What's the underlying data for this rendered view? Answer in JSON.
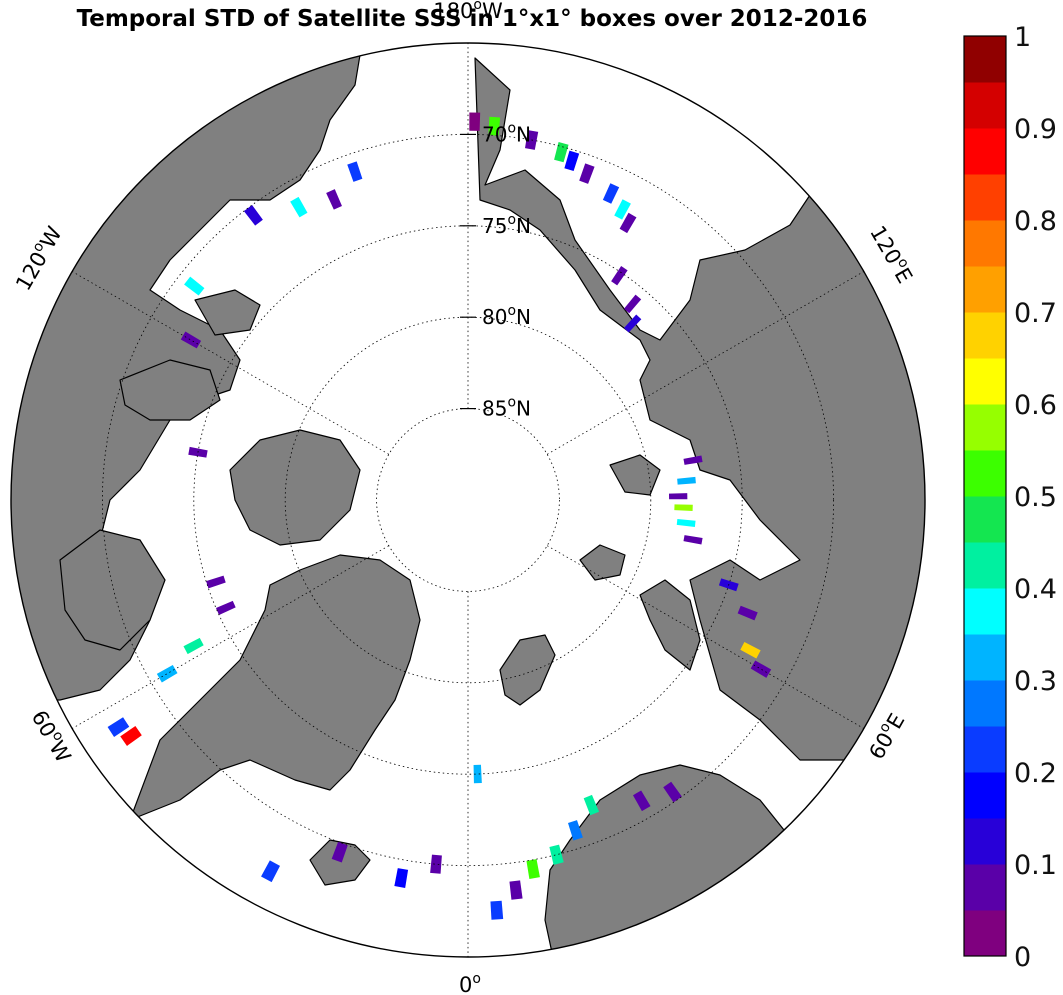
{
  "title": "Temporal STD of Satellite SSS in 1°x1° boxes over 2012-2016",
  "parallels": [
    {
      "lat": 70,
      "label": "70"
    },
    {
      "lat": 75,
      "label": "75"
    },
    {
      "lat": 80,
      "label": "80"
    },
    {
      "lat": 85,
      "label": "85"
    }
  ],
  "lat_suffix": "N",
  "meridian_labels": [
    {
      "text": "180",
      "hemi": "W"
    },
    {
      "text": "120",
      "hemi": "E"
    },
    {
      "text": "60",
      "hemi": "E"
    },
    {
      "text": "0",
      "hemi": ""
    },
    {
      "text": "60",
      "hemi": "W"
    },
    {
      "text": "120",
      "hemi": "W"
    }
  ],
  "colorbar": {
    "min": 0,
    "max": 1,
    "tick_labels": [
      "0",
      "0.1",
      "0.2",
      "0.3",
      "0.4",
      "0.5",
      "0.6",
      "0.7",
      "0.8",
      "0.9",
      "1"
    ],
    "colors": [
      "#7f007f",
      "#5a00a8",
      "#2800d8",
      "#0000ff",
      "#0a3cff",
      "#0078ff",
      "#00b4ff",
      "#00ffff",
      "#00f0a0",
      "#14e650",
      "#3cff00",
      "#96ff00",
      "#ffff00",
      "#ffd200",
      "#ffa000",
      "#ff7800",
      "#ff4000",
      "#ff0000",
      "#d40000",
      "#900000"
    ]
  },
  "colors": {
    "land": "#808080",
    "ocean": "#ffffff",
    "coast": "#000000",
    "grid": "#000000"
  },
  "chart_data": {
    "type": "heatmap",
    "title": "Temporal STD of Satellite SSS in 1°x1° boxes over 2012-2016",
    "projection": "north polar stereographic",
    "lat_range": [
      65,
      90
    ],
    "value_range": [
      0,
      1
    ],
    "cells": [
      {
        "lon": 179,
        "lat": 69.3,
        "v": 0.03
      },
      {
        "lon": 176,
        "lat": 69.5,
        "v": 0.52
      },
      {
        "lon": 170,
        "lat": 70,
        "v": 0.05
      },
      {
        "lon": 165,
        "lat": 70.3,
        "v": 0.45
      },
      {
        "lon": 163,
        "lat": 70.6,
        "v": 0.15
      },
      {
        "lon": 160,
        "lat": 71,
        "v": 0.08
      },
      {
        "lon": 155,
        "lat": 71.5,
        "v": 0.2
      },
      {
        "lon": 152,
        "lat": 72,
        "v": 0.38
      },
      {
        "lon": 150,
        "lat": 72.5,
        "v": 0.05
      },
      {
        "lon": 146,
        "lat": 75.2,
        "v": 0.05
      },
      {
        "lon": 140,
        "lat": 76,
        "v": 0.05
      },
      {
        "lon": 137,
        "lat": 76.8,
        "v": 0.1
      },
      {
        "lon": 100,
        "lat": 77.5,
        "v": 0.08
      },
      {
        "lon": 95,
        "lat": 78,
        "v": 0.3
      },
      {
        "lon": 91,
        "lat": 78.5,
        "v": 0.05
      },
      {
        "lon": 88,
        "lat": 78.2,
        "v": 0.55
      },
      {
        "lon": 84,
        "lat": 78,
        "v": 0.36
      },
      {
        "lon": 80,
        "lat": 77.5,
        "v": 0.05
      },
      {
        "lon": 72,
        "lat": 75,
        "v": 0.1
      },
      {
        "lon": 68,
        "lat": 73.5,
        "v": 0.05
      },
      {
        "lon": 62,
        "lat": 72.5,
        "v": 0.65
      },
      {
        "lon": 60,
        "lat": 71.5,
        "v": 0.05
      },
      {
        "lon": 35,
        "lat": 70.5,
        "v": 0.05
      },
      {
        "lon": 30,
        "lat": 71,
        "v": 0.05
      },
      {
        "lon": 22,
        "lat": 72,
        "v": 0.42
      },
      {
        "lon": 18,
        "lat": 71,
        "v": 0.28
      },
      {
        "lon": 14,
        "lat": 70,
        "v": 0.4
      },
      {
        "lon": 10,
        "lat": 69.5,
        "v": 0.5
      },
      {
        "lon": 7,
        "lat": 68.5,
        "v": 0.05
      },
      {
        "lon": 4,
        "lat": 67.5,
        "v": 0.2
      },
      {
        "lon": 2,
        "lat": 75,
        "v": 0.32
      },
      {
        "lon": -5,
        "lat": 70,
        "v": 0.05
      },
      {
        "lon": -10,
        "lat": 69,
        "v": 0.15
      },
      {
        "lon": -20,
        "lat": 69.5,
        "v": 0.05
      },
      {
        "lon": -28,
        "lat": 67,
        "v": 0.2
      },
      {
        "lon": -55,
        "lat": 67.5,
        "v": 0.88
      },
      {
        "lon": -57,
        "lat": 67.2,
        "v": 0.2
      },
      {
        "lon": -60,
        "lat": 71,
        "v": 0.3
      },
      {
        "lon": -62,
        "lat": 73,
        "v": 0.42
      },
      {
        "lon": -66,
        "lat": 75.5,
        "v": 0.05
      },
      {
        "lon": -72,
        "lat": 75.5,
        "v": 0.05
      },
      {
        "lon": -100,
        "lat": 75,
        "v": 0.05
      },
      {
        "lon": -120,
        "lat": 72.5,
        "v": 0.05
      },
      {
        "lon": -128,
        "lat": 71,
        "v": 0.38
      },
      {
        "lon": -143,
        "lat": 70.5,
        "v": 0.12
      },
      {
        "lon": -150,
        "lat": 71.5,
        "v": 0.35
      },
      {
        "lon": -156,
        "lat": 72,
        "v": 0.05
      },
      {
        "lon": -161,
        "lat": 71,
        "v": 0.22
      }
    ]
  }
}
